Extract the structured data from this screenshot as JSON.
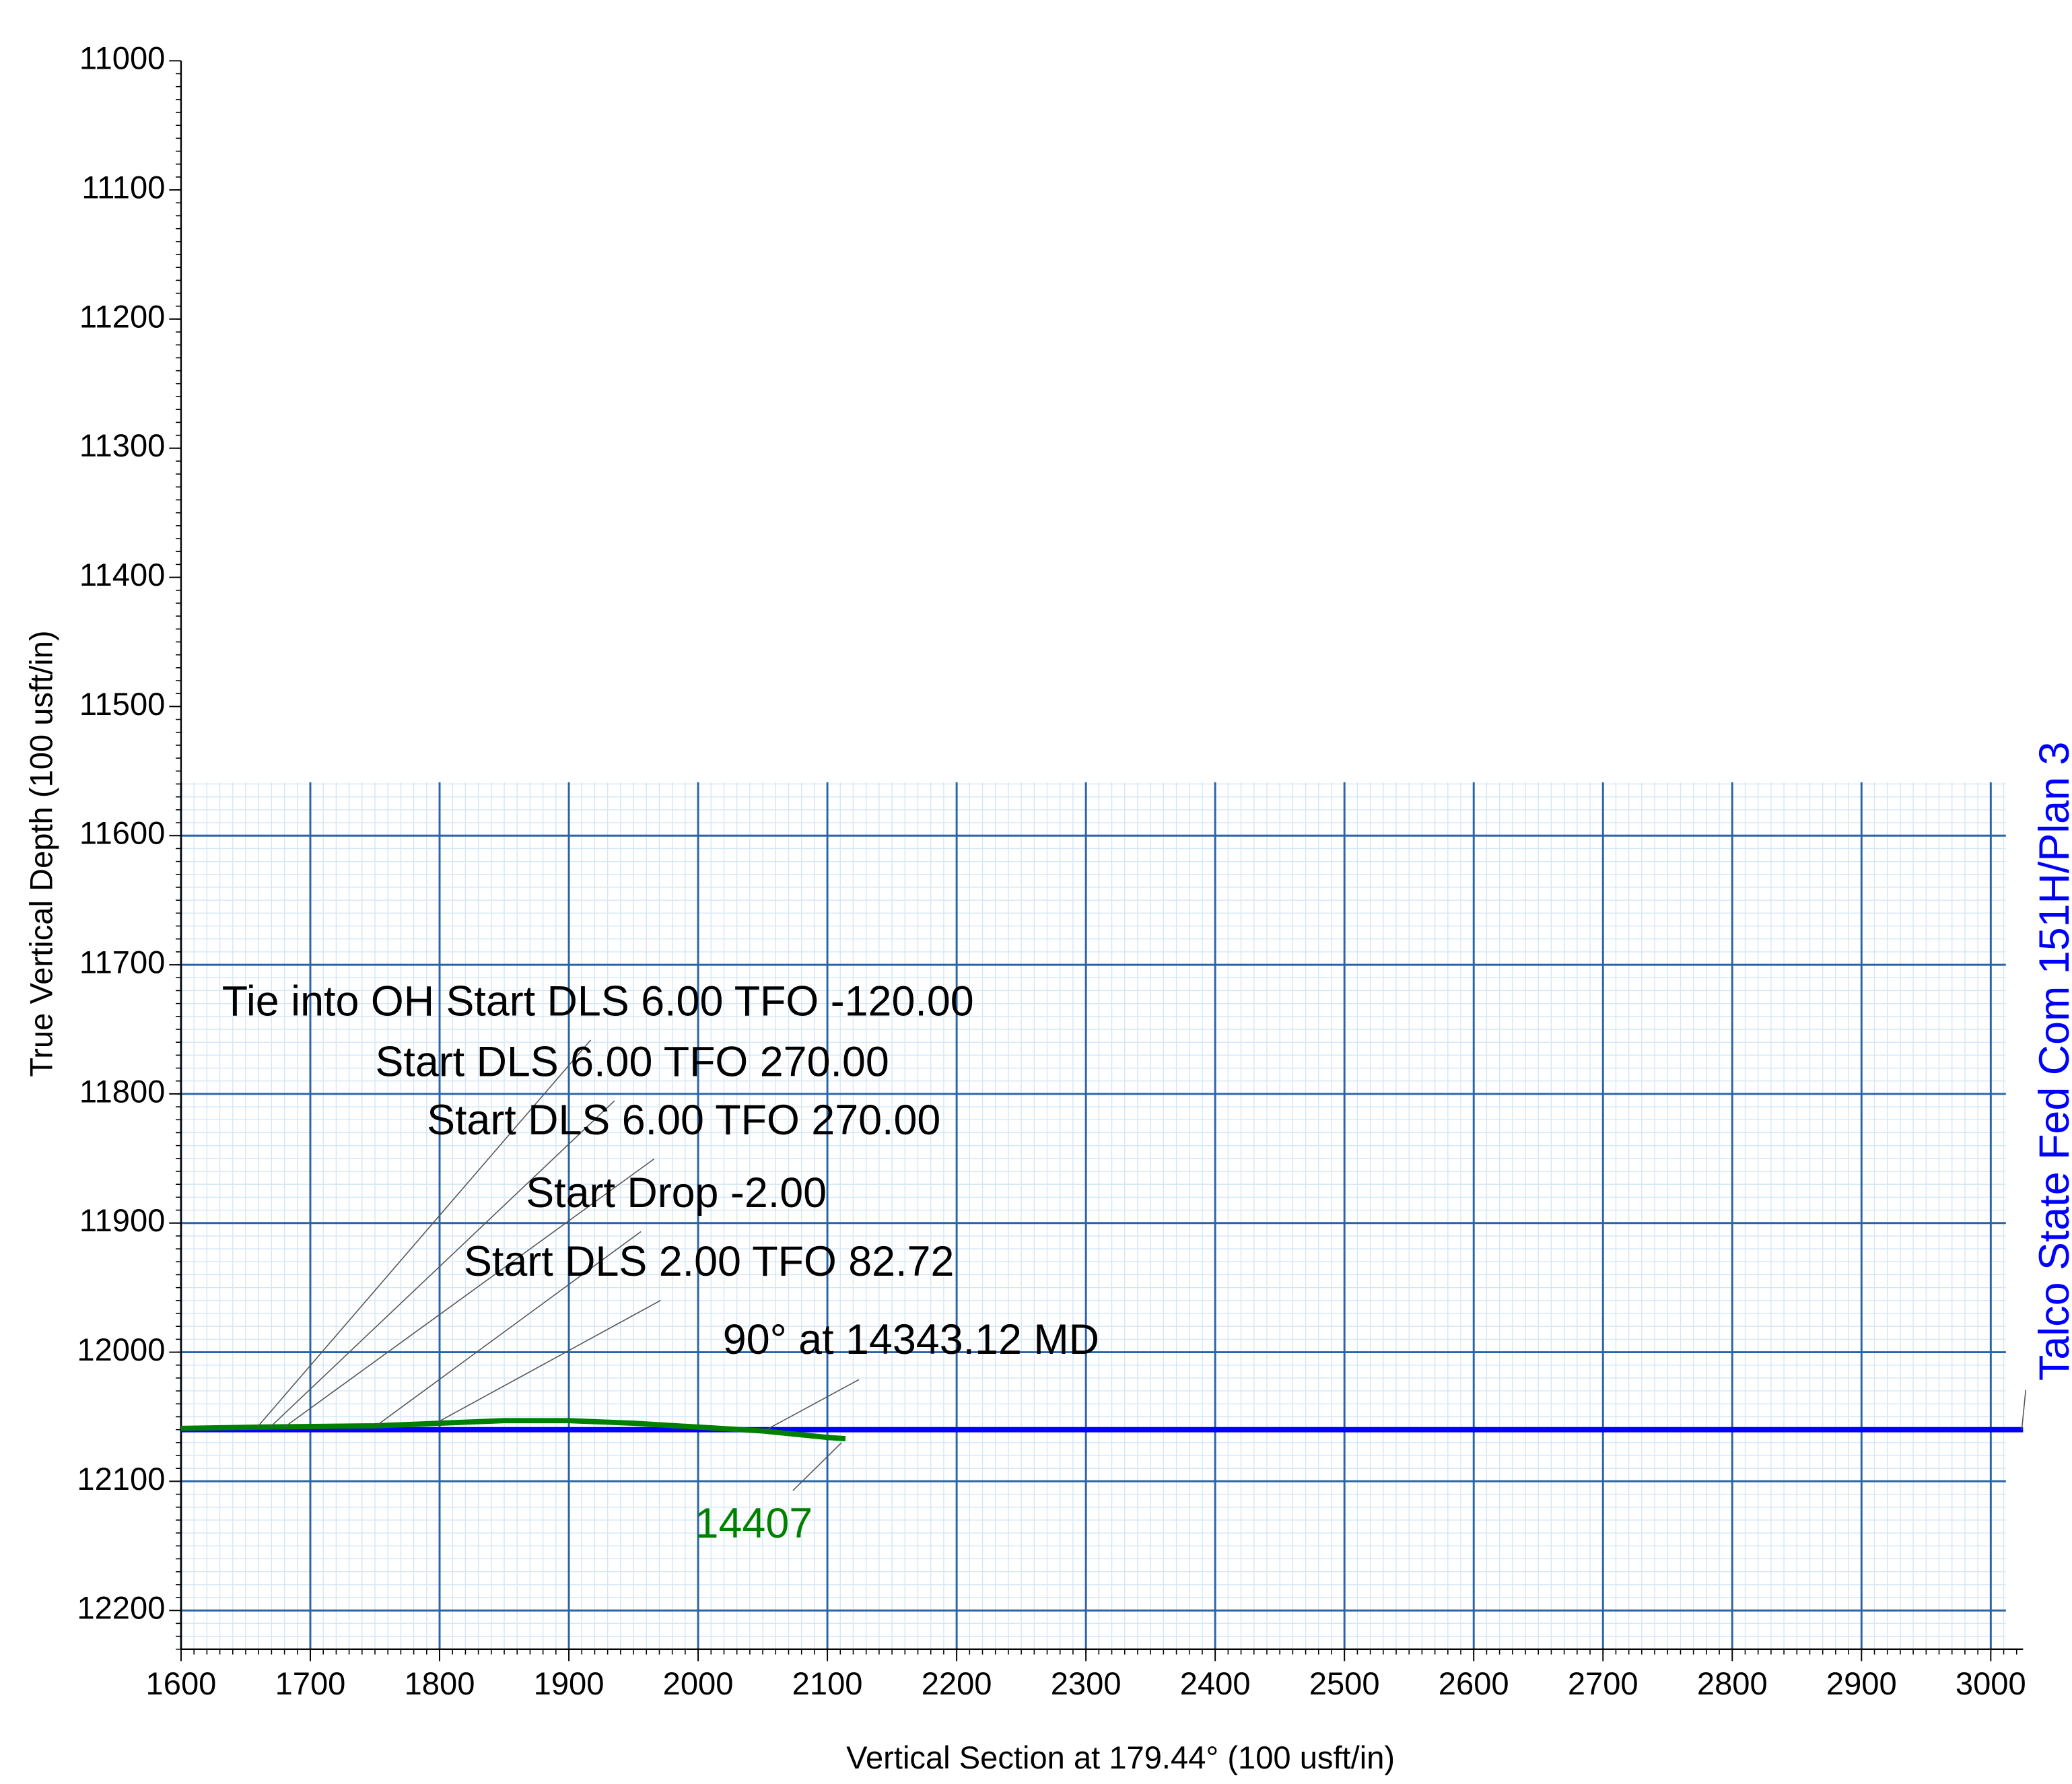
{
  "chart_data": {
    "type": "line",
    "xlabel": "Vertical Section at 179.44° (100 usft/in)",
    "ylabel": "True Vertical Depth (100 usft/in)",
    "xlim": [
      1600,
      3025
    ],
    "ylim": [
      11000,
      12230
    ],
    "y_inverted": true,
    "xticks": [
      1600,
      1700,
      1800,
      1900,
      2000,
      2100,
      2200,
      2300,
      2400,
      2500,
      2600,
      2700,
      2800,
      2900,
      3000
    ],
    "yticks": [
      11000,
      11100,
      11200,
      11300,
      11400,
      11500,
      11600,
      11700,
      11800,
      11900,
      12000,
      12100,
      12200
    ],
    "grid": true,
    "series": [
      {
        "name": "Talco State Fed Com 151H/Plan 3",
        "color": "#0000ff",
        "x": [
          1600,
          3025
        ],
        "values": [
          12060,
          12060
        ]
      },
      {
        "color": "#008000",
        "end_label": "14407",
        "x": [
          1600,
          1660,
          1750,
          1800,
          1850,
          1900,
          1950,
          2000,
          2050,
          2100,
          2114
        ],
        "values": [
          12059,
          12058,
          12057,
          12055,
          12053,
          12053,
          12055,
          12058,
          12061,
          12066,
          12067
        ]
      }
    ],
    "annotations": [
      {
        "text": "Tie into OH Start DLS 6.00 TFO -120.00",
        "x": 1659,
        "y": 12058
      },
      {
        "text": "Start DLS 6.00 TFO 270.00",
        "x": 1669,
        "y": 12058
      },
      {
        "text": "Start DLS 6.00 TFO 270.00",
        "x": 1680,
        "y": 12058
      },
      {
        "text": "Start Drop -2.00",
        "x": 1751,
        "y": 12057
      },
      {
        "text": "Start DLS 2.00 TFO 82.72",
        "x": 1797,
        "y": 12055
      },
      {
        "text": "90° at 14343.12 MD",
        "x": 2051,
        "y": 12061
      }
    ]
  }
}
